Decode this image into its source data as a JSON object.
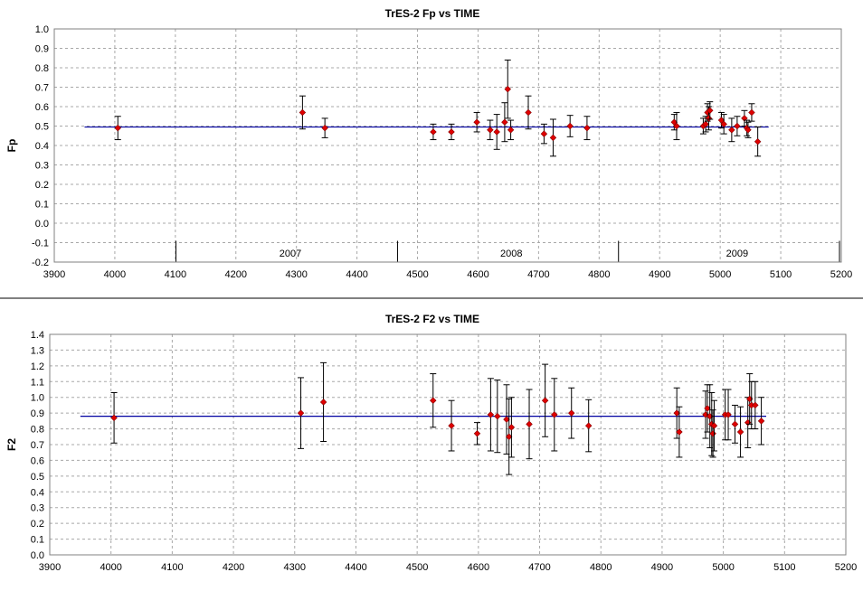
{
  "chart_data": [
    {
      "type": "scatter",
      "title": "TrES-2 Fp vs TIME",
      "xlabel": "",
      "ylabel": "Fp",
      "xlim": [
        3900,
        5200
      ],
      "ylim": [
        -0.2,
        1.0
      ],
      "xticks": [
        3900,
        4000,
        4100,
        4200,
        4300,
        4400,
        4500,
        4600,
        4700,
        4800,
        4900,
        5000,
        5100,
        5200
      ],
      "yticks": [
        "1.0",
        "0.9",
        "0.8",
        "0.7",
        "0.6",
        "0.5",
        "0.4",
        "0.3",
        "0.2",
        "0.1",
        "0.0",
        "-0.1",
        "-0.2"
      ],
      "grid": true,
      "marker_color": "#e00000",
      "fit_line": {
        "y": 0.495,
        "x_start": 3950,
        "x_end": 5080,
        "color": "#0000a0"
      },
      "year_labels": [
        {
          "label": "2007",
          "x": 4290
        },
        {
          "label": "2008",
          "x": 4655
        },
        {
          "label": "2009",
          "x": 5028
        }
      ],
      "year_dividers": [
        4101,
        4467,
        4832,
        5197
      ],
      "points": [
        {
          "x": 4005,
          "y": 0.49,
          "err": 0.06
        },
        {
          "x": 4310,
          "y": 0.57,
          "err": 0.085
        },
        {
          "x": 4347,
          "y": 0.49,
          "err": 0.05
        },
        {
          "x": 4526,
          "y": 0.47,
          "err": 0.04
        },
        {
          "x": 4556,
          "y": 0.47,
          "err": 0.04
        },
        {
          "x": 4598,
          "y": 0.52,
          "err": 0.05
        },
        {
          "x": 4620,
          "y": 0.48,
          "err": 0.05
        },
        {
          "x": 4631,
          "y": 0.47,
          "err": 0.09
        },
        {
          "x": 4644,
          "y": 0.52,
          "err": 0.1
        },
        {
          "x": 4649,
          "y": 0.69,
          "err": 0.15
        },
        {
          "x": 4654,
          "y": 0.48,
          "err": 0.05
        },
        {
          "x": 4683,
          "y": 0.57,
          "err": 0.085
        },
        {
          "x": 4709,
          "y": 0.46,
          "err": 0.05
        },
        {
          "x": 4724,
          "y": 0.44,
          "err": 0.095
        },
        {
          "x": 4752,
          "y": 0.5,
          "err": 0.055
        },
        {
          "x": 4780,
          "y": 0.49,
          "err": 0.06
        },
        {
          "x": 4924,
          "y": 0.52,
          "err": 0.04
        },
        {
          "x": 4928,
          "y": 0.5,
          "err": 0.07
        },
        {
          "x": 4972,
          "y": 0.5,
          "err": 0.04
        },
        {
          "x": 4976,
          "y": 0.51,
          "err": 0.04
        },
        {
          "x": 4979,
          "y": 0.57,
          "err": 0.045
        },
        {
          "x": 4981,
          "y": 0.54,
          "err": 0.06
        },
        {
          "x": 4983,
          "y": 0.58,
          "err": 0.045
        },
        {
          "x": 5002,
          "y": 0.53,
          "err": 0.04
        },
        {
          "x": 5006,
          "y": 0.51,
          "err": 0.05
        },
        {
          "x": 5019,
          "y": 0.48,
          "err": 0.06
        },
        {
          "x": 5028,
          "y": 0.5,
          "err": 0.05
        },
        {
          "x": 5040,
          "y": 0.54,
          "err": 0.04
        },
        {
          "x": 5044,
          "y": 0.49,
          "err": 0.04
        },
        {
          "x": 5046,
          "y": 0.48,
          "err": 0.04
        },
        {
          "x": 5052,
          "y": 0.57,
          "err": 0.045
        },
        {
          "x": 5062,
          "y": 0.42,
          "err": 0.075
        }
      ]
    },
    {
      "type": "scatter",
      "title": "TrES-2 F2 vs TIME",
      "xlabel": "",
      "ylabel": "F2",
      "xlim": [
        3900,
        5200
      ],
      "ylim": [
        0.0,
        1.4
      ],
      "xticks": [
        3900,
        4000,
        4100,
        4200,
        4300,
        4400,
        4500,
        4600,
        4700,
        4800,
        4900,
        5000,
        5100,
        5200
      ],
      "yticks": [
        "1.4",
        "1.3",
        "1.2",
        "1.1",
        "1.0",
        "0.9",
        "0.8",
        "0.7",
        "0.6",
        "0.5",
        "0.4",
        "0.3",
        "0.2",
        "0.1",
        "0.0"
      ],
      "grid": true,
      "marker_color": "#e00000",
      "fit_line": {
        "y": 0.88,
        "x_start": 3950,
        "x_end": 5070,
        "color": "#0000a0"
      },
      "points": [
        {
          "x": 4005,
          "y": 0.87,
          "err": 0.16
        },
        {
          "x": 4310,
          "y": 0.9,
          "err": 0.225
        },
        {
          "x": 4347,
          "y": 0.97,
          "err": 0.25
        },
        {
          "x": 4526,
          "y": 0.98,
          "err": 0.17
        },
        {
          "x": 4556,
          "y": 0.82,
          "err": 0.16
        },
        {
          "x": 4598,
          "y": 0.77,
          "err": 0.07
        },
        {
          "x": 4620,
          "y": 0.89,
          "err": 0.23
        },
        {
          "x": 4631,
          "y": 0.88,
          "err": 0.23
        },
        {
          "x": 4646,
          "y": 0.86,
          "err": 0.22
        },
        {
          "x": 4650,
          "y": 0.75,
          "err": 0.24
        },
        {
          "x": 4654,
          "y": 0.81,
          "err": 0.19
        },
        {
          "x": 4683,
          "y": 0.83,
          "err": 0.22
        },
        {
          "x": 4709,
          "y": 0.98,
          "err": 0.23
        },
        {
          "x": 4724,
          "y": 0.89,
          "err": 0.23
        },
        {
          "x": 4752,
          "y": 0.9,
          "err": 0.16
        },
        {
          "x": 4780,
          "y": 0.82,
          "err": 0.165
        },
        {
          "x": 4924,
          "y": 0.9,
          "err": 0.16
        },
        {
          "x": 4928,
          "y": 0.78,
          "err": 0.16
        },
        {
          "x": 4971,
          "y": 0.89,
          "err": 0.15
        },
        {
          "x": 4974,
          "y": 0.93,
          "err": 0.15
        },
        {
          "x": 4978,
          "y": 0.88,
          "err": 0.2
        },
        {
          "x": 4981,
          "y": 0.83,
          "err": 0.2
        },
        {
          "x": 4983,
          "y": 0.77,
          "err": 0.15
        },
        {
          "x": 4985,
          "y": 0.82,
          "err": 0.16
        },
        {
          "x": 5003,
          "y": 0.89,
          "err": 0.16
        },
        {
          "x": 5008,
          "y": 0.89,
          "err": 0.16
        },
        {
          "x": 5019,
          "y": 0.83,
          "err": 0.12
        },
        {
          "x": 5028,
          "y": 0.78,
          "err": 0.16
        },
        {
          "x": 5040,
          "y": 0.84,
          "err": 0.16
        },
        {
          "x": 5043,
          "y": 0.99,
          "err": 0.16
        },
        {
          "x": 5046,
          "y": 0.95,
          "err": 0.15
        },
        {
          "x": 5052,
          "y": 0.95,
          "err": 0.15
        },
        {
          "x": 5062,
          "y": 0.85,
          "err": 0.15
        }
      ]
    }
  ]
}
